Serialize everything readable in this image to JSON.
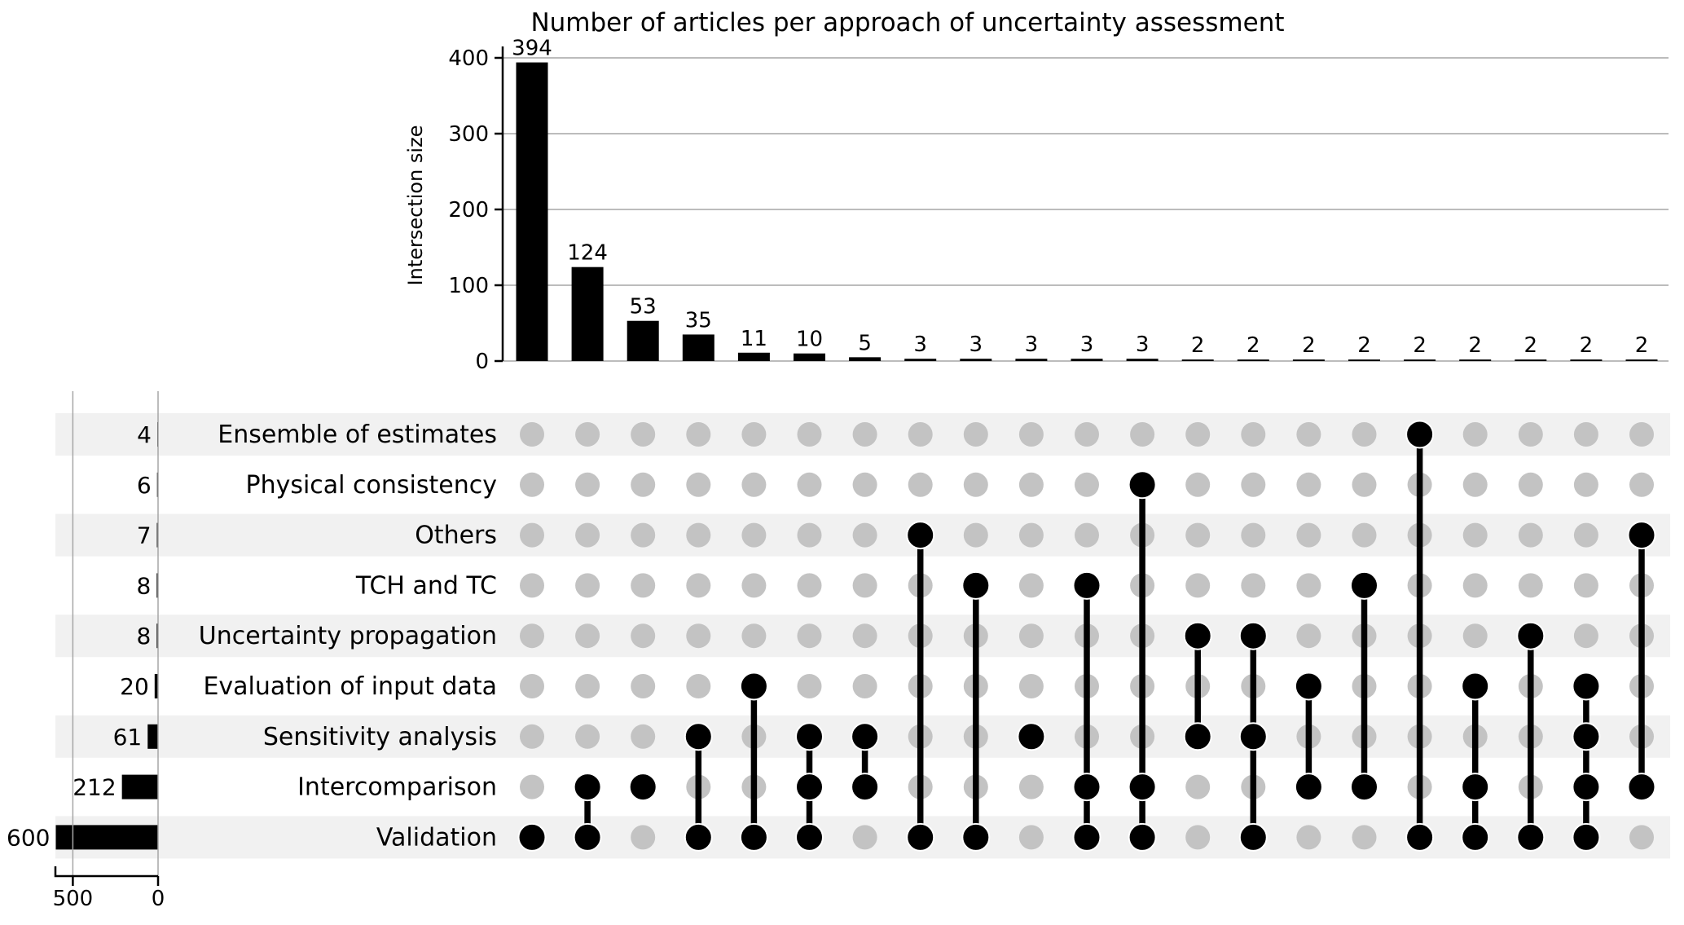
{
  "title": "Number of articles per approach of uncertainty assessment",
  "chart_data": {
    "type": "upset",
    "title": "Number of articles per approach of uncertainty assessment",
    "ylabel": "Intersection size",
    "ylim": [
      0,
      400
    ],
    "y_ticks": [
      0,
      100,
      200,
      300,
      400
    ],
    "set_axis_ticks": [
      500,
      0
    ],
    "grid": "on",
    "sets": [
      {
        "label": "Ensemble of estimates",
        "size": 4
      },
      {
        "label": "Physical consistency",
        "size": 6
      },
      {
        "label": "Others",
        "size": 7
      },
      {
        "label": "TCH and TC",
        "size": 8
      },
      {
        "label": "Uncertainty propagation",
        "size": 8
      },
      {
        "label": "Evaluation of input data",
        "size": 20
      },
      {
        "label": "Sensitivity analysis",
        "size": 61
      },
      {
        "label": "Intercomparison",
        "size": 212
      },
      {
        "label": "Validation",
        "size": 600
      }
    ],
    "intersections": [
      {
        "size": 394,
        "sets": [
          "Validation"
        ]
      },
      {
        "size": 124,
        "sets": [
          "Intercomparison",
          "Validation"
        ]
      },
      {
        "size": 53,
        "sets": [
          "Intercomparison"
        ]
      },
      {
        "size": 35,
        "sets": [
          "Sensitivity analysis",
          "Validation"
        ]
      },
      {
        "size": 11,
        "sets": [
          "Evaluation of input data",
          "Validation"
        ]
      },
      {
        "size": 10,
        "sets": [
          "Sensitivity analysis",
          "Intercomparison",
          "Validation"
        ]
      },
      {
        "size": 5,
        "sets": [
          "Sensitivity analysis",
          "Intercomparison"
        ]
      },
      {
        "size": 3,
        "sets": [
          "Others",
          "Validation"
        ]
      },
      {
        "size": 3,
        "sets": [
          "TCH and TC",
          "Validation"
        ]
      },
      {
        "size": 3,
        "sets": [
          "Sensitivity analysis"
        ]
      },
      {
        "size": 3,
        "sets": [
          "TCH and TC",
          "Intercomparison",
          "Validation"
        ]
      },
      {
        "size": 3,
        "sets": [
          "Physical consistency",
          "Intercomparison",
          "Validation"
        ]
      },
      {
        "size": 2,
        "sets": [
          "Uncertainty propagation",
          "Sensitivity analysis"
        ]
      },
      {
        "size": 2,
        "sets": [
          "Uncertainty propagation",
          "Sensitivity analysis",
          "Validation"
        ]
      },
      {
        "size": 2,
        "sets": [
          "Evaluation of input data",
          "Intercomparison"
        ]
      },
      {
        "size": 2,
        "sets": [
          "TCH and TC",
          "Intercomparison"
        ]
      },
      {
        "size": 2,
        "sets": [
          "Ensemble of estimates",
          "Validation"
        ]
      },
      {
        "size": 2,
        "sets": [
          "Evaluation of input data",
          "Intercomparison",
          "Validation"
        ]
      },
      {
        "size": 2,
        "sets": [
          "Uncertainty propagation",
          "Validation"
        ]
      },
      {
        "size": 2,
        "sets": [
          "Evaluation of input data",
          "Sensitivity analysis",
          "Intercomparison",
          "Validation"
        ]
      },
      {
        "size": 2,
        "sets": [
          "Others",
          "Intercomparison"
        ]
      }
    ],
    "colors": {
      "bar": "#000000",
      "active_dot": "#000000",
      "inactive_dot": "#c3c3c3",
      "row_band": "#f1f1f1",
      "grid": "#b2b2b2",
      "vgrid": "#a6a6a6",
      "axis": "#000000"
    }
  }
}
